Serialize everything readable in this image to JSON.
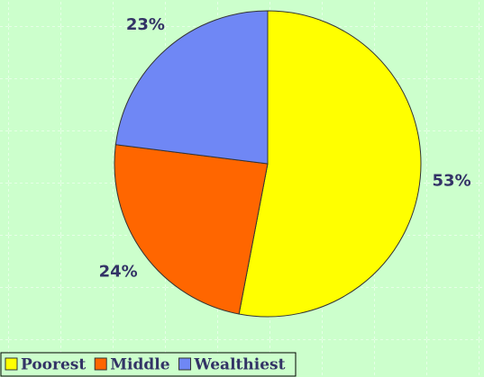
{
  "chart_data": {
    "type": "pie",
    "categories": [
      "Poorest",
      "Middle",
      "Wealthiest"
    ],
    "series": [
      {
        "values": [
          53,
          24,
          23
        ],
        "value_labels": [
          "53%",
          "24%",
          "23%"
        ],
        "colors": [
          "#ffff00",
          "#ff6600",
          "#6f87f5"
        ]
      }
    ],
    "legend": "bottom"
  }
}
